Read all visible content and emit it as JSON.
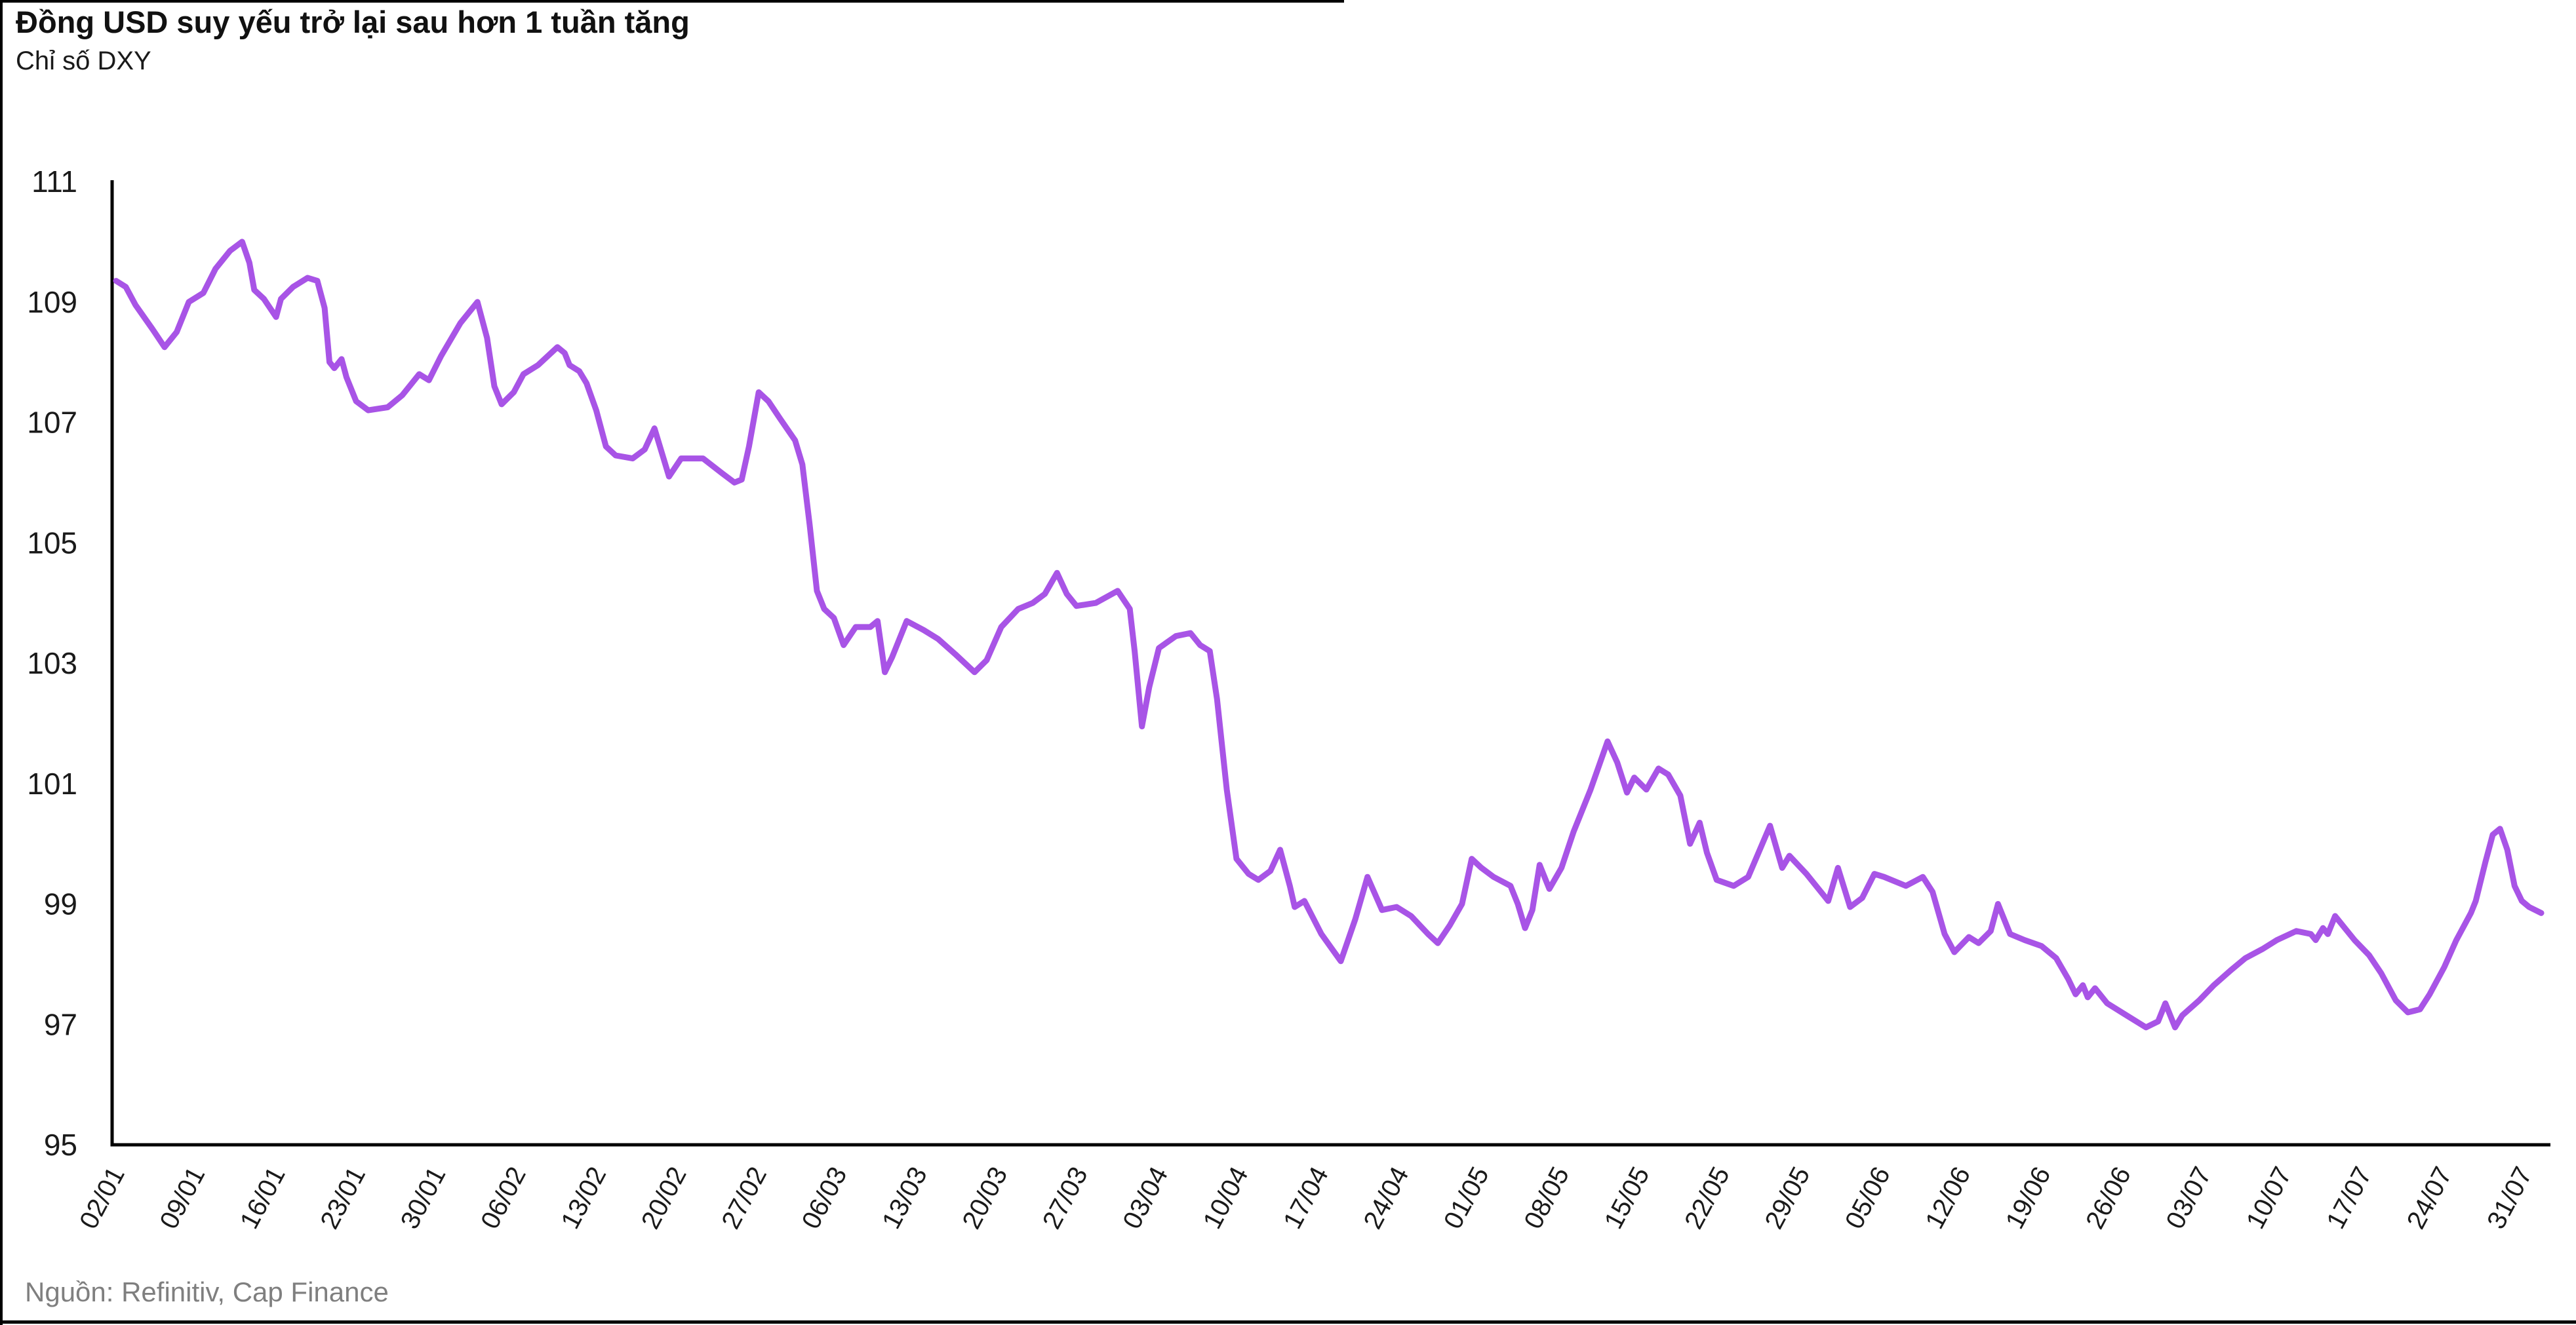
{
  "header": {
    "title": "Đồng USD suy yếu trở lại sau hơn 1 tuần tăng",
    "subtitle": "Chỉ số DXY",
    "source": "Nguồn: Refinitiv, Cap Finance"
  },
  "colors": {
    "line": "#A854E6",
    "axis": "#000000",
    "tick_text": "#1a1a1a",
    "source_text": "#7f7f7f"
  },
  "chart_data": {
    "type": "line",
    "title": "Đồng USD suy yếu trở lại sau hơn 1 tuần tăng",
    "subtitle": "Chỉ số DXY",
    "source": "Nguồn: Refinitiv, Cap Finance",
    "xlabel": "",
    "ylabel": "",
    "ylim": [
      95,
      111
    ],
    "y_ticks": [
      111,
      109,
      107,
      105,
      103,
      101,
      99,
      97,
      95
    ],
    "grid": false,
    "legend_position": "none",
    "x_tick_labels": [
      "02/01",
      "09/01",
      "16/01",
      "23/01",
      "30/01",
      "06/02",
      "13/02",
      "20/02",
      "27/02",
      "06/03",
      "13/03",
      "20/03",
      "27/03",
      "03/04",
      "10/04",
      "17/04",
      "24/04",
      "01/05",
      "08/05",
      "15/05",
      "22/05",
      "29/05",
      "05/06",
      "12/06",
      "19/06",
      "26/06",
      "03/07",
      "10/07",
      "17/07",
      "24/07",
      "31/07"
    ],
    "series": [
      {
        "name": "DXY",
        "color": "#A854E6",
        "x_unit": "fraction_of_axis_from_02_01_to_line_end",
        "points": [
          [
            0.0,
            109.35
          ],
          [
            0.004,
            109.25
          ],
          [
            0.008,
            108.95
          ],
          [
            0.015,
            108.55
          ],
          [
            0.02,
            108.25
          ],
          [
            0.025,
            108.5
          ],
          [
            0.03,
            109.0
          ],
          [
            0.036,
            109.15
          ],
          [
            0.041,
            109.55
          ],
          [
            0.047,
            109.85
          ],
          [
            0.052,
            110.0
          ],
          [
            0.055,
            109.65
          ],
          [
            0.057,
            109.2
          ],
          [
            0.061,
            109.05
          ],
          [
            0.066,
            108.75
          ],
          [
            0.068,
            109.05
          ],
          [
            0.073,
            109.25
          ],
          [
            0.079,
            109.4
          ],
          [
            0.083,
            109.35
          ],
          [
            0.086,
            108.9
          ],
          [
            0.088,
            108.0
          ],
          [
            0.09,
            107.9
          ],
          [
            0.093,
            108.05
          ],
          [
            0.095,
            107.75
          ],
          [
            0.099,
            107.35
          ],
          [
            0.104,
            107.2
          ],
          [
            0.112,
            107.25
          ],
          [
            0.118,
            107.45
          ],
          [
            0.122,
            107.65
          ],
          [
            0.125,
            107.8
          ],
          [
            0.129,
            107.7
          ],
          [
            0.134,
            108.1
          ],
          [
            0.142,
            108.65
          ],
          [
            0.149,
            109.0
          ],
          [
            0.153,
            108.4
          ],
          [
            0.156,
            107.6
          ],
          [
            0.159,
            107.3
          ],
          [
            0.164,
            107.5
          ],
          [
            0.168,
            107.8
          ],
          [
            0.174,
            107.95
          ],
          [
            0.182,
            108.25
          ],
          [
            0.185,
            108.15
          ],
          [
            0.187,
            107.95
          ],
          [
            0.191,
            107.85
          ],
          [
            0.194,
            107.65
          ],
          [
            0.198,
            107.2
          ],
          [
            0.202,
            106.6
          ],
          [
            0.206,
            106.45
          ],
          [
            0.213,
            106.4
          ],
          [
            0.218,
            106.55
          ],
          [
            0.222,
            106.9
          ],
          [
            0.225,
            106.5
          ],
          [
            0.228,
            106.1
          ],
          [
            0.233,
            106.4
          ],
          [
            0.242,
            106.4
          ],
          [
            0.25,
            106.15
          ],
          [
            0.255,
            106.0
          ],
          [
            0.258,
            106.05
          ],
          [
            0.261,
            106.6
          ],
          [
            0.265,
            107.5
          ],
          [
            0.269,
            107.35
          ],
          [
            0.274,
            107.05
          ],
          [
            0.28,
            106.7
          ],
          [
            0.283,
            106.3
          ],
          [
            0.286,
            105.3
          ],
          [
            0.289,
            104.2
          ],
          [
            0.292,
            103.9
          ],
          [
            0.296,
            103.75
          ],
          [
            0.3,
            103.3
          ],
          [
            0.305,
            103.6
          ],
          [
            0.311,
            103.6
          ],
          [
            0.314,
            103.7
          ],
          [
            0.317,
            102.85
          ],
          [
            0.32,
            103.1
          ],
          [
            0.326,
            103.7
          ],
          [
            0.333,
            103.55
          ],
          [
            0.339,
            103.4
          ],
          [
            0.346,
            103.15
          ],
          [
            0.354,
            102.85
          ],
          [
            0.359,
            103.05
          ],
          [
            0.365,
            103.6
          ],
          [
            0.372,
            103.9
          ],
          [
            0.378,
            104.0
          ],
          [
            0.383,
            104.15
          ],
          [
            0.388,
            104.5
          ],
          [
            0.392,
            104.15
          ],
          [
            0.396,
            103.95
          ],
          [
            0.404,
            104.0
          ],
          [
            0.413,
            104.2
          ],
          [
            0.418,
            103.9
          ],
          [
            0.42,
            103.2
          ],
          [
            0.423,
            101.95
          ],
          [
            0.426,
            102.6
          ],
          [
            0.43,
            103.25
          ],
          [
            0.437,
            103.45
          ],
          [
            0.443,
            103.5
          ],
          [
            0.447,
            103.3
          ],
          [
            0.451,
            103.2
          ],
          [
            0.454,
            102.4
          ],
          [
            0.458,
            100.9
          ],
          [
            0.462,
            99.75
          ],
          [
            0.467,
            99.5
          ],
          [
            0.471,
            99.4
          ],
          [
            0.476,
            99.55
          ],
          [
            0.48,
            99.9
          ],
          [
            0.484,
            99.3
          ],
          [
            0.486,
            98.95
          ],
          [
            0.49,
            99.05
          ],
          [
            0.497,
            98.5
          ],
          [
            0.505,
            98.05
          ],
          [
            0.511,
            98.75
          ],
          [
            0.516,
            99.45
          ],
          [
            0.522,
            98.9
          ],
          [
            0.528,
            98.95
          ],
          [
            0.534,
            98.8
          ],
          [
            0.541,
            98.5
          ],
          [
            0.545,
            98.35
          ],
          [
            0.55,
            98.65
          ],
          [
            0.555,
            99.0
          ],
          [
            0.559,
            99.75
          ],
          [
            0.563,
            99.6
          ],
          [
            0.568,
            99.45
          ],
          [
            0.575,
            99.3
          ],
          [
            0.578,
            99.0
          ],
          [
            0.581,
            98.6
          ],
          [
            0.584,
            98.9
          ],
          [
            0.587,
            99.65
          ],
          [
            0.591,
            99.25
          ],
          [
            0.596,
            99.6
          ],
          [
            0.601,
            100.2
          ],
          [
            0.608,
            100.9
          ],
          [
            0.615,
            101.7
          ],
          [
            0.619,
            101.35
          ],
          [
            0.623,
            100.85
          ],
          [
            0.626,
            101.1
          ],
          [
            0.631,
            100.9
          ],
          [
            0.636,
            101.25
          ],
          [
            0.64,
            101.15
          ],
          [
            0.645,
            100.8
          ],
          [
            0.649,
            100.0
          ],
          [
            0.653,
            100.35
          ],
          [
            0.656,
            99.85
          ],
          [
            0.66,
            99.4
          ],
          [
            0.667,
            99.3
          ],
          [
            0.673,
            99.45
          ],
          [
            0.682,
            100.3
          ],
          [
            0.687,
            99.6
          ],
          [
            0.69,
            99.8
          ],
          [
            0.697,
            99.5
          ],
          [
            0.704,
            99.15
          ],
          [
            0.706,
            99.05
          ],
          [
            0.71,
            99.6
          ],
          [
            0.715,
            98.95
          ],
          [
            0.72,
            99.1
          ],
          [
            0.725,
            99.5
          ],
          [
            0.729,
            99.45
          ],
          [
            0.738,
            99.3
          ],
          [
            0.745,
            99.45
          ],
          [
            0.749,
            99.2
          ],
          [
            0.754,
            98.5
          ],
          [
            0.758,
            98.2
          ],
          [
            0.764,
            98.45
          ],
          [
            0.768,
            98.35
          ],
          [
            0.773,
            98.55
          ],
          [
            0.776,
            99.0
          ],
          [
            0.781,
            98.5
          ],
          [
            0.787,
            98.4
          ],
          [
            0.794,
            98.3
          ],
          [
            0.8,
            98.1
          ],
          [
            0.805,
            97.75
          ],
          [
            0.808,
            97.5
          ],
          [
            0.811,
            97.65
          ],
          [
            0.813,
            97.45
          ],
          [
            0.816,
            97.6
          ],
          [
            0.821,
            97.35
          ],
          [
            0.829,
            97.15
          ],
          [
            0.837,
            96.95
          ],
          [
            0.842,
            97.05
          ],
          [
            0.845,
            97.35
          ],
          [
            0.849,
            96.95
          ],
          [
            0.852,
            97.15
          ],
          [
            0.859,
            97.4
          ],
          [
            0.865,
            97.65
          ],
          [
            0.872,
            97.9
          ],
          [
            0.878,
            98.1
          ],
          [
            0.885,
            98.25
          ],
          [
            0.891,
            98.4
          ],
          [
            0.899,
            98.55
          ],
          [
            0.905,
            98.5
          ],
          [
            0.907,
            98.4
          ],
          [
            0.91,
            98.6
          ],
          [
            0.912,
            98.5
          ],
          [
            0.915,
            98.8
          ],
          [
            0.919,
            98.6
          ],
          [
            0.923,
            98.4
          ],
          [
            0.929,
            98.15
          ],
          [
            0.934,
            97.85
          ],
          [
            0.94,
            97.4
          ],
          [
            0.945,
            97.2
          ],
          [
            0.95,
            97.25
          ],
          [
            0.954,
            97.5
          ],
          [
            0.96,
            97.95
          ],
          [
            0.965,
            98.4
          ],
          [
            0.971,
            98.85
          ],
          [
            0.973,
            99.05
          ],
          [
            0.977,
            99.7
          ],
          [
            0.98,
            100.15
          ],
          [
            0.983,
            100.25
          ],
          [
            0.986,
            99.9
          ],
          [
            0.989,
            99.3
          ],
          [
            0.992,
            99.05
          ],
          [
            0.995,
            98.95
          ],
          [
            1.0,
            98.85
          ]
        ]
      }
    ]
  }
}
